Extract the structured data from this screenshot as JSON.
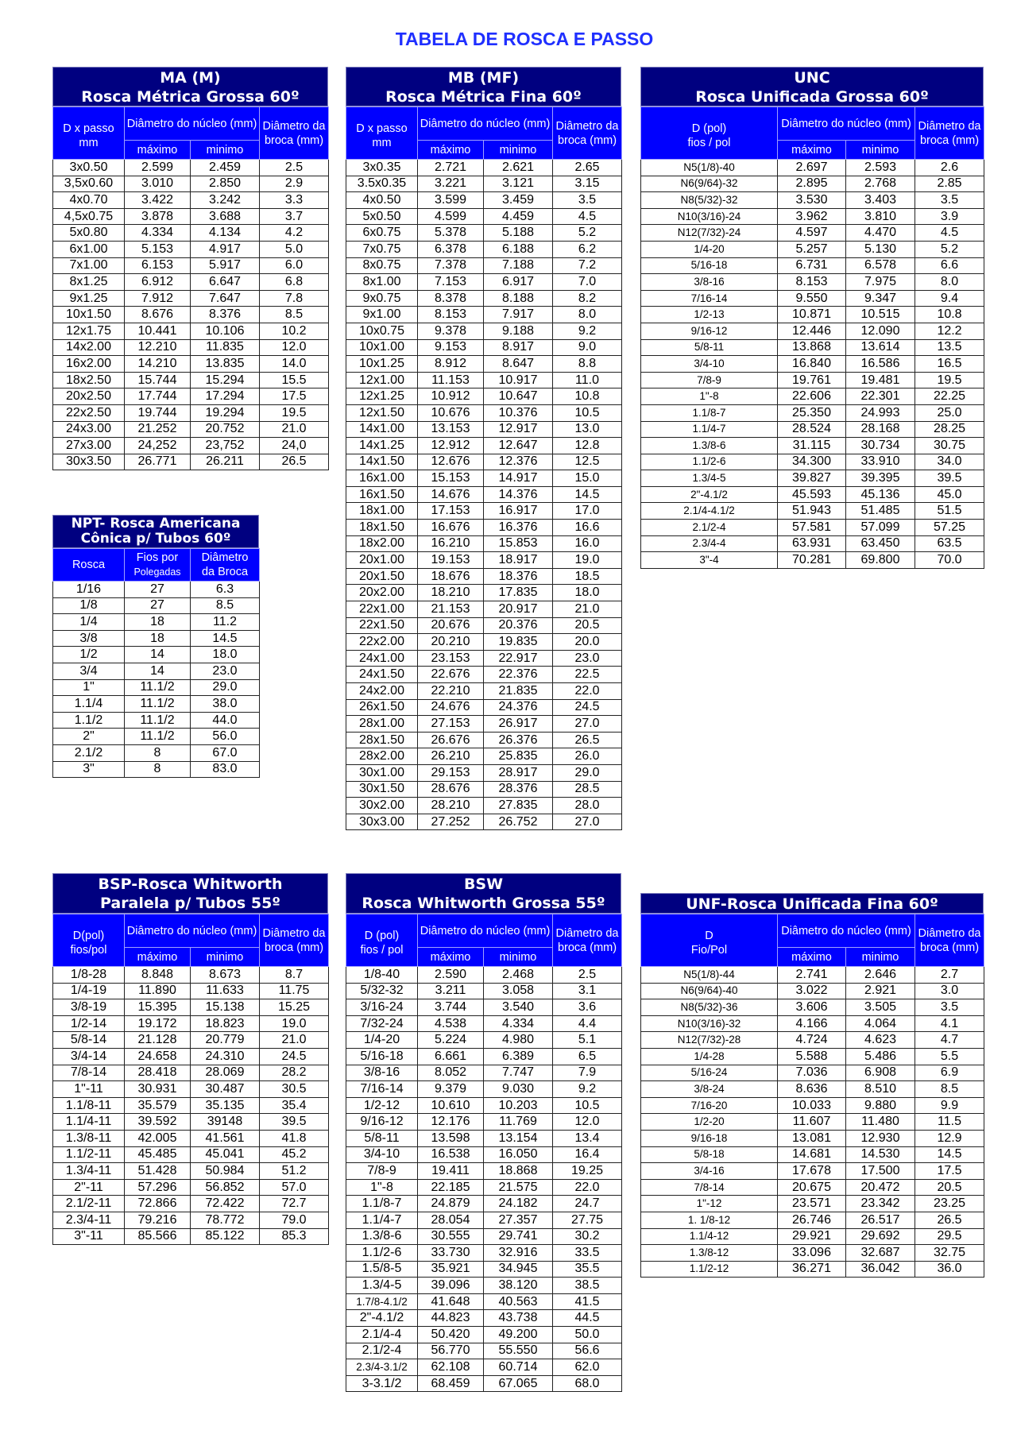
{
  "title": "TABELA DE ROSCA E PASSO",
  "colors": {
    "title": "#1f2fff",
    "band": "#000080",
    "header": "#0000ff"
  },
  "tables": {
    "ma": {
      "title": [
        "MA (M)",
        "Rosca Métrica Grossa 60º"
      ],
      "col1": [
        "D x passo",
        "mm"
      ],
      "nucleo": "Diâmetro do núcleo (mm)",
      "max": "máximo",
      "min": "minimo",
      "broca": "Diâmetro da broca (mm)",
      "rows": [
        [
          "3x0.50",
          "2.599",
          "2.459",
          "2.5"
        ],
        [
          "3,5x0.60",
          "3.010",
          "2.850",
          "2.9"
        ],
        [
          "4x0.70",
          "3.422",
          "3.242",
          "3.3"
        ],
        [
          "4,5x0.75",
          "3.878",
          "3.688",
          "3.7"
        ],
        [
          "5x0.80",
          "4.334",
          "4.134",
          "4.2"
        ],
        [
          "6x1.00",
          "5.153",
          "4.917",
          "5.0"
        ],
        [
          "7x1.00",
          "6.153",
          "5.917",
          "6.0"
        ],
        [
          "8x1.25",
          "6.912",
          "6.647",
          "6.8"
        ],
        [
          "9x1.25",
          "7.912",
          "7.647",
          "7.8"
        ],
        [
          "10x1.50",
          "8.676",
          "8.376",
          "8.5"
        ],
        [
          "12x1.75",
          "10.441",
          "10.106",
          "10.2"
        ],
        [
          "14x2.00",
          "12.210",
          "11.835",
          "12.0"
        ],
        [
          "16x2.00",
          "14.210",
          "13.835",
          "14.0"
        ],
        [
          "18x2.50",
          "15.744",
          "15.294",
          "15.5"
        ],
        [
          "20x2.50",
          "17.744",
          "17.294",
          "17.5"
        ],
        [
          "22x2.50",
          "19.744",
          "19.294",
          "19.5"
        ],
        [
          "24x3.00",
          "21.252",
          "20.752",
          "21.0"
        ],
        [
          "27x3.00",
          "24,252",
          "23,752",
          "24,0"
        ],
        [
          "30x3.50",
          "26.771",
          "26.211",
          "26.5"
        ]
      ]
    },
    "mb": {
      "title": [
        "MB (MF)",
        "Rosca Métrica Fina 60º"
      ],
      "col1": [
        "D x passo",
        "mm"
      ],
      "nucleo": "Diâmetro do núcleo (mm)",
      "max": "máximo",
      "min": "minimo",
      "broca": "Diâmetro da broca (mm)",
      "rows": [
        [
          "3x0.35",
          "2.721",
          "2.621",
          "2.65"
        ],
        [
          "3.5x0.35",
          "3.221",
          "3.121",
          "3.15"
        ],
        [
          "4x0.50",
          "3.599",
          "3.459",
          "3.5"
        ],
        [
          "5x0.50",
          "4.599",
          "4.459",
          "4.5"
        ],
        [
          "6x0.75",
          "5.378",
          "5.188",
          "5.2"
        ],
        [
          "7x0.75",
          "6.378",
          "6.188",
          "6.2"
        ],
        [
          "8x0.75",
          "7.378",
          "7.188",
          "7.2"
        ],
        [
          "8x1.00",
          "7.153",
          "6.917",
          "7.0"
        ],
        [
          "9x0.75",
          "8.378",
          "8.188",
          "8.2"
        ],
        [
          "9x1.00",
          "8.153",
          "7.917",
          "8.0"
        ],
        [
          "10x0.75",
          "9.378",
          "9.188",
          "9.2"
        ],
        [
          "10x1.00",
          "9.153",
          "8.917",
          "9.0"
        ],
        [
          "10x1.25",
          "8.912",
          "8.647",
          "8.8"
        ],
        [
          "12x1.00",
          "11.153",
          "10.917",
          "11.0"
        ],
        [
          "12x1.25",
          "10.912",
          "10.647",
          "10.8"
        ],
        [
          "12x1.50",
          "10.676",
          "10.376",
          "10.5"
        ],
        [
          "14x1.00",
          "13.153",
          "12.917",
          "13.0"
        ],
        [
          "14x1.25",
          "12.912",
          "12.647",
          "12.8"
        ],
        [
          "14x1.50",
          "12.676",
          "12.376",
          "12.5"
        ],
        [
          "16x1.00",
          "15.153",
          "14.917",
          "15.0"
        ],
        [
          "16x1.50",
          "14.676",
          "14.376",
          "14.5"
        ],
        [
          "18x1.00",
          "17.153",
          "16.917",
          "17.0"
        ],
        [
          "18x1.50",
          "16.676",
          "16.376",
          "16.6"
        ],
        [
          "18x2.00",
          "16.210",
          "15.853",
          "16.0"
        ],
        [
          "20x1.00",
          "19.153",
          "18.917",
          "19.0"
        ],
        [
          "20x1.50",
          "18.676",
          "18.376",
          "18.5"
        ],
        [
          "20x2.00",
          "18.210",
          "17.835",
          "18.0"
        ],
        [
          "22x1.00",
          "21.153",
          "20.917",
          "21.0"
        ],
        [
          "22x1.50",
          "20.676",
          "20.376",
          "20.5"
        ],
        [
          "22x2.00",
          "20.210",
          "19.835",
          "20.0"
        ],
        [
          "24x1.00",
          "23.153",
          "22.917",
          "23.0"
        ],
        [
          "24x1.50",
          "22.676",
          "22.376",
          "22.5"
        ],
        [
          "24x2.00",
          "22.210",
          "21.835",
          "22.0"
        ],
        [
          "26x1.50",
          "24.676",
          "24.376",
          "24.5"
        ],
        [
          "28x1.00",
          "27.153",
          "26.917",
          "27.0"
        ],
        [
          "28x1.50",
          "26.676",
          "26.376",
          "26.5"
        ],
        [
          "28x2.00",
          "26.210",
          "25.835",
          "26.0"
        ],
        [
          "30x1.00",
          "29.153",
          "28.917",
          "29.0"
        ],
        [
          "30x1.50",
          "28.676",
          "28.376",
          "28.5"
        ],
        [
          "30x2.00",
          "28.210",
          "27.835",
          "28.0"
        ],
        [
          "30x3.00",
          "27.252",
          "26.752",
          "27.0"
        ]
      ]
    },
    "unc": {
      "title": [
        "UNC",
        "Rosca Unificada Grossa 60º"
      ],
      "col1": [
        "D (pol)",
        "fios / pol"
      ],
      "nucleo": "Diâmetro do núcleo (mm)",
      "max": "máximo",
      "min": "minimo",
      "broca": "Diâmetro da broca (mm)",
      "rows": [
        [
          "N5(1/8)-40",
          "2.697",
          "2.593",
          "2.6"
        ],
        [
          "N6(9/64)-32",
          "2.895",
          "2.768",
          "2.85"
        ],
        [
          "N8(5/32)-32",
          "3.530",
          "3.403",
          "3.5"
        ],
        [
          "N10(3/16)-24",
          "3.962",
          "3.810",
          "3.9"
        ],
        [
          "N12(7/32)-24",
          "4.597",
          "4.470",
          "4.5"
        ],
        [
          "1/4-20",
          "5.257",
          "5.130",
          "5.2"
        ],
        [
          "5/16-18",
          "6.731",
          "6.578",
          "6.6"
        ],
        [
          "3/8-16",
          "8.153",
          "7.975",
          "8.0"
        ],
        [
          "7/16-14",
          "9.550",
          "9.347",
          "9.4"
        ],
        [
          "1/2-13",
          "10.871",
          "10.515",
          "10.8"
        ],
        [
          "9/16-12",
          "12.446",
          "12.090",
          "12.2"
        ],
        [
          "5/8-11",
          "13.868",
          "13.614",
          "13.5"
        ],
        [
          "3/4-10",
          "16.840",
          "16.586",
          "16.5"
        ],
        [
          "7/8-9",
          "19.761",
          "19.481",
          "19.5"
        ],
        [
          "1\"-8",
          "22.606",
          "22.301",
          "22.25"
        ],
        [
          "1.1/8-7",
          "25.350",
          "24.993",
          "25.0"
        ],
        [
          "1.1/4-7",
          "28.524",
          "28.168",
          "28.25"
        ],
        [
          "1.3/8-6",
          "31.115",
          "30.734",
          "30.75"
        ],
        [
          "1.1/2-6",
          "34.300",
          "33.910",
          "34.0"
        ],
        [
          "1.3/4-5",
          "39.827",
          "39.395",
          "39.5"
        ],
        [
          "2\"-4.1/2",
          "45.593",
          "45.136",
          "45.0"
        ],
        [
          "2.1/4-4.1/2",
          "51.943",
          "51.485",
          "51.5"
        ],
        [
          "2.1/2-4",
          "57.581",
          "57.099",
          "57.25"
        ],
        [
          "2.3/4-4",
          "63.931",
          "63.450",
          "63.5"
        ],
        [
          "3\"-4",
          "70.281",
          "69.800",
          "70.0"
        ]
      ]
    },
    "npt": {
      "title": [
        "NPT- Rosca Americana",
        "Cônica p/ Tubos 60º"
      ],
      "col1": "Rosca",
      "fios": [
        "Fios por",
        "Polegadas"
      ],
      "broca": [
        "Diâmetro",
        "da Broca"
      ],
      "rows": [
        [
          "1/16",
          "27",
          "6.3"
        ],
        [
          "1/8",
          "27",
          "8.5"
        ],
        [
          "1/4",
          "18",
          "11.2"
        ],
        [
          "3/8",
          "18",
          "14.5"
        ],
        [
          "1/2",
          "14",
          "18.0"
        ],
        [
          "3/4",
          "14",
          "23.0"
        ],
        [
          "1\"",
          "11.1/2",
          "29.0"
        ],
        [
          "1.1/4",
          "11.1/2",
          "38.0"
        ],
        [
          "1.1/2",
          "11.1/2",
          "44.0"
        ],
        [
          "2\"",
          "11.1/2",
          "56.0"
        ],
        [
          "2.1/2",
          "8",
          "67.0"
        ],
        [
          "3\"",
          "8",
          "83.0"
        ]
      ]
    },
    "bsp": {
      "title": [
        "BSP-Rosca Whitworth",
        "Paralela p/ Tubos 55º"
      ],
      "col1": [
        "D(pol)",
        "fios/pol"
      ],
      "nucleo": "Diâmetro do núcleo (mm)",
      "max": "máximo",
      "min": "minimo",
      "broca": "Diâmetro da broca (mm)",
      "rows": [
        [
          "1/8-28",
          "8.848",
          "8.673",
          "8.7"
        ],
        [
          "1/4-19",
          "11.890",
          "11.633",
          "11.75"
        ],
        [
          "3/8-19",
          "15.395",
          "15.138",
          "15.25"
        ],
        [
          "1/2-14",
          "19.172",
          "18.823",
          "19.0"
        ],
        [
          "5/8-14",
          "21.128",
          "20.779",
          "21.0"
        ],
        [
          "3/4-14",
          "24.658",
          "24.310",
          "24.5"
        ],
        [
          "7/8-14",
          "28.418",
          "28.069",
          "28.2"
        ],
        [
          "1\"-11",
          "30.931",
          "30.487",
          "30.5"
        ],
        [
          "1.1/8-11",
          "35.579",
          "35.135",
          "35.4"
        ],
        [
          "1.1/4-11",
          "39.592",
          "39148",
          "39.5"
        ],
        [
          "1.3/8-11",
          "42.005",
          "41.561",
          "41.8"
        ],
        [
          "1.1/2-11",
          "45.485",
          "45.041",
          "45.2"
        ],
        [
          "1.3/4-11",
          "51.428",
          "50.984",
          "51.2"
        ],
        [
          "2\"-11",
          "57.296",
          "56.852",
          "57.0"
        ],
        [
          "2.1/2-11",
          "72.866",
          "72.422",
          "72.7"
        ],
        [
          "2.3/4-11",
          "79.216",
          "78.772",
          "79.0"
        ],
        [
          "3\"-11",
          "85.566",
          "85.122",
          "85.3"
        ]
      ]
    },
    "bsw": {
      "title": [
        "BSW",
        "Rosca Whitworth Grossa 55º"
      ],
      "col1": [
        "D (pol)",
        "fios / pol"
      ],
      "nucleo": "Diâmetro do núcleo (mm)",
      "max": "máximo",
      "min": "minimo",
      "broca": "Diâmetro da broca (mm)",
      "rows": [
        [
          "1/8-40",
          "2.590",
          "2.468",
          "2.5"
        ],
        [
          "5/32-32",
          "3.211",
          "3.058",
          "3.1"
        ],
        [
          "3/16-24",
          "3.744",
          "3.540",
          "3.6"
        ],
        [
          "7/32-24",
          "4.538",
          "4.334",
          "4.4"
        ],
        [
          "1/4-20",
          "5.224",
          "4.980",
          "5.1"
        ],
        [
          "5/16-18",
          "6.661",
          "6.389",
          "6.5"
        ],
        [
          "3/8-16",
          "8.052",
          "7.747",
          "7.9"
        ],
        [
          "7/16-14",
          "9.379",
          "9.030",
          "9.2"
        ],
        [
          "1/2-12",
          "10.610",
          "10.203",
          "10.5"
        ],
        [
          "9/16-12",
          "12.176",
          "11.769",
          "12.0"
        ],
        [
          "5/8-11",
          "13.598",
          "13.154",
          "13.4"
        ],
        [
          "3/4-10",
          "16.538",
          "16.050",
          "16.4"
        ],
        [
          "7/8-9",
          "19.411",
          "18.868",
          "19.25"
        ],
        [
          "1\"-8",
          "22.185",
          "21.575",
          "22.0"
        ],
        [
          "1.1/8-7",
          "24.879",
          "24.182",
          "24.7"
        ],
        [
          "1.1/4-7",
          "28.054",
          "27.357",
          "27.75"
        ],
        [
          "1.3/8-6",
          "30.555",
          "29.741",
          "30.2"
        ],
        [
          "1.1/2-6",
          "33.730",
          "32.916",
          "33.5"
        ],
        [
          "1.5/8-5",
          "35.921",
          "34.945",
          "35.5"
        ],
        [
          "1.3/4-5",
          "39.096",
          "38.120",
          "38.5"
        ],
        [
          "1.7/8-4.1/2",
          "41.648",
          "40.563",
          "41.5"
        ],
        [
          "2\"-4.1/2",
          "44.823",
          "43.738",
          "44.5"
        ],
        [
          "2.1/4-4",
          "50.420",
          "49.200",
          "50.0"
        ],
        [
          "2.1/2-4",
          "56.770",
          "55.550",
          "56.6"
        ],
        [
          "2.3/4-3.1/2",
          "62.108",
          "60.714",
          "62.0"
        ],
        [
          "3-3.1/2",
          "68.459",
          "67.065",
          "68.0"
        ]
      ]
    },
    "unf": {
      "title": [
        "UNF-Rosca Unificada Fina 60º"
      ],
      "col1": [
        "D",
        "Fio/Pol"
      ],
      "nucleo": "Diâmetro do núcleo (mm)",
      "max": "máximo",
      "min": "minimo",
      "broca": "Diâmetro da broca (mm)",
      "rows": [
        [
          "N5(1/8)-44",
          "2.741",
          "2.646",
          "2.7"
        ],
        [
          "N6(9/64)-40",
          "3.022",
          "2.921",
          "3.0"
        ],
        [
          "N8(5/32)-36",
          "3.606",
          "3.505",
          "3.5"
        ],
        [
          "N10(3/16)-32",
          "4.166",
          "4.064",
          "4.1"
        ],
        [
          "N12(7/32)-28",
          "4.724",
          "4.623",
          "4.7"
        ],
        [
          "1/4-28",
          "5.588",
          "5.486",
          "5.5"
        ],
        [
          "5/16-24",
          "7.036",
          "6.908",
          "6.9"
        ],
        [
          "3/8-24",
          "8.636",
          "8.510",
          "8.5"
        ],
        [
          "7/16-20",
          "10.033",
          "9.880",
          "9.9"
        ],
        [
          "1/2-20",
          "11.607",
          "11.480",
          "11.5"
        ],
        [
          "9/16-18",
          "13.081",
          "12.930",
          "12.9"
        ],
        [
          "5/8-18",
          "14.681",
          "14.530",
          "14.5"
        ],
        [
          "3/4-16",
          "17.678",
          "17.500",
          "17.5"
        ],
        [
          "7/8-14",
          "20.675",
          "20.472",
          "20.5"
        ],
        [
          "1\"-12",
          "23.571",
          "23.342",
          "23.25"
        ],
        [
          "1. 1/8-12",
          "26.746",
          "26.517",
          "26.5"
        ],
        [
          "1.1/4-12",
          "29.921",
          "29.692",
          "29.5"
        ],
        [
          "1.3/8-12",
          "33.096",
          "32.687",
          "32.75"
        ],
        [
          "1.1/2-12",
          "36.271",
          "36.042",
          "36.0"
        ]
      ]
    }
  }
}
